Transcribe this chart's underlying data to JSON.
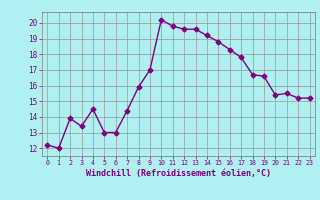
{
  "x": [
    0,
    1,
    2,
    3,
    4,
    5,
    6,
    7,
    8,
    9,
    10,
    11,
    12,
    13,
    14,
    15,
    16,
    17,
    18,
    19,
    20,
    21,
    22,
    23
  ],
  "y": [
    12.2,
    12.0,
    13.9,
    13.4,
    14.5,
    13.0,
    13.0,
    14.4,
    15.9,
    17.0,
    20.2,
    19.8,
    19.6,
    19.6,
    19.2,
    18.8,
    18.3,
    17.8,
    16.7,
    16.6,
    15.4,
    15.5,
    15.2,
    15.2
  ],
  "line_color": "#800080",
  "marker": "D",
  "markersize": 2.5,
  "linewidth": 1.0,
  "bg_color": "#b0f0f0",
  "grid_color": "#999999",
  "xlabel": "Windchill (Refroidissement éolien,°C)",
  "xlabel_color": "#800080",
  "tick_color": "#800080",
  "xlim": [
    -0.5,
    23.5
  ],
  "ylim": [
    11.5,
    20.7
  ],
  "yticks": [
    12,
    13,
    14,
    15,
    16,
    17,
    18,
    19,
    20
  ],
  "xticks": [
    0,
    1,
    2,
    3,
    4,
    5,
    6,
    7,
    8,
    9,
    10,
    11,
    12,
    13,
    14,
    15,
    16,
    17,
    18,
    19,
    20,
    21,
    22,
    23
  ]
}
